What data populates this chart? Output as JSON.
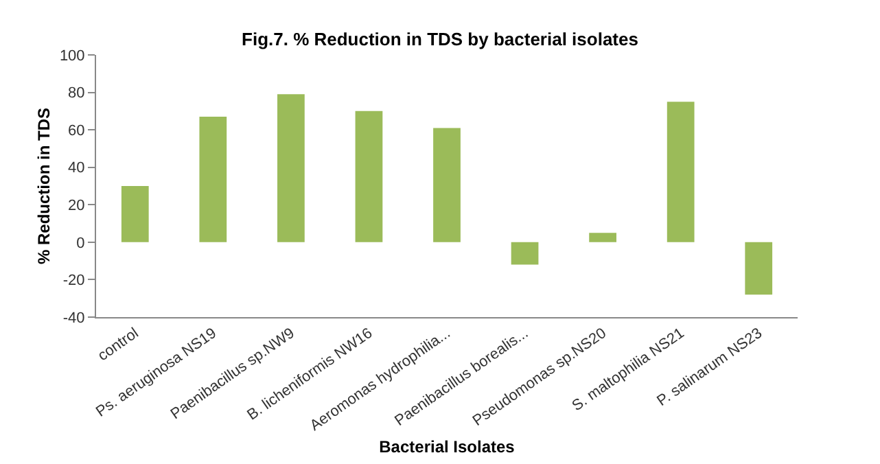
{
  "chart_data": {
    "type": "bar",
    "title": "Fig.7. % Reduction in TDS by bacterial isolates",
    "xlabel": "Bacterial Isolates",
    "ylabel": "% Reduction in TDS",
    "categories": [
      "control",
      "Ps. aeruginosa NS19",
      "Paenibacillus sp.NW9",
      "B. licheniformis NW16",
      "Aeromonas hydrophilia...",
      "Paenibacillus borealis...",
      "Pseudomonas sp.NS20",
      "S. maltophilia NS21",
      "P. salinarum NS23"
    ],
    "values": [
      30,
      67,
      79,
      70,
      61,
      -12,
      5,
      75,
      -28
    ],
    "color": "#9bbb59",
    "ylim": [
      -40,
      100
    ],
    "yticks": [
      -40,
      -20,
      0,
      20,
      40,
      60,
      80,
      100
    ],
    "grid": false,
    "legend": false
  }
}
